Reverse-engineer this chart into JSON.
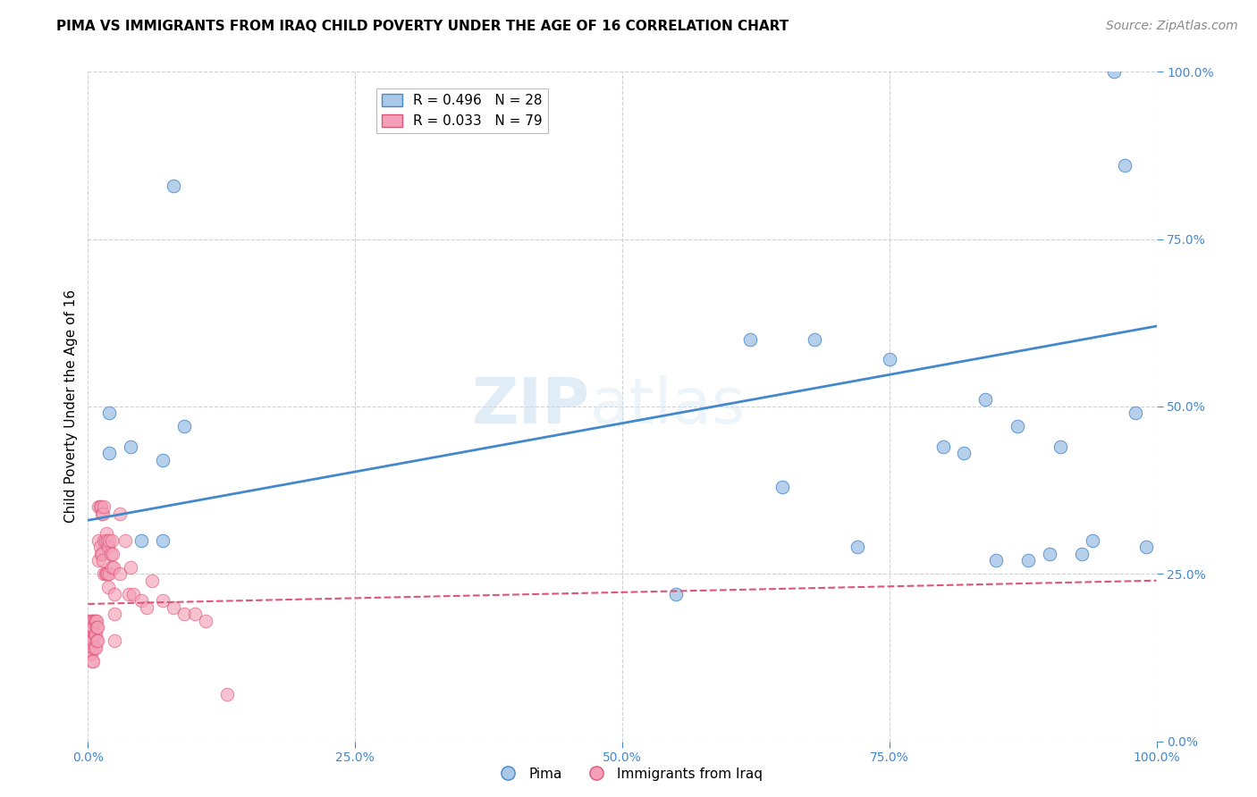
{
  "title": "PIMA VS IMMIGRANTS FROM IRAQ CHILD POVERTY UNDER THE AGE OF 16 CORRELATION CHART",
  "source": "Source: ZipAtlas.com",
  "ylabel": "Child Poverty Under the Age of 16",
  "blue_label": "Pima",
  "pink_label": "Immigrants from Iraq",
  "blue_R": "R = 0.496",
  "blue_N": "N = 28",
  "pink_R": "R = 0.033",
  "pink_N": "N = 79",
  "blue_color": "#aac8e8",
  "pink_color": "#f4a0b8",
  "blue_line_color": "#4488cc",
  "pink_line_color": "#dd5577",
  "watermark_top": "ZIP",
  "watermark_bot": "atlas",
  "xlim": [
    0,
    1
  ],
  "ylim": [
    0,
    1
  ],
  "xticks": [
    0.0,
    0.25,
    0.5,
    0.75,
    1.0
  ],
  "yticks": [
    0.0,
    0.25,
    0.5,
    0.75,
    1.0
  ],
  "blue_points_x": [
    0.02,
    0.02,
    0.04,
    0.05,
    0.07,
    0.07,
    0.08,
    0.09,
    0.55,
    0.65,
    0.68,
    0.72,
    0.75,
    0.8,
    0.82,
    0.84,
    0.85,
    0.87,
    0.88,
    0.9,
    0.91,
    0.93,
    0.94,
    0.96,
    0.97,
    0.98,
    0.99,
    0.62
  ],
  "blue_points_y": [
    0.49,
    0.43,
    0.44,
    0.3,
    0.3,
    0.42,
    0.83,
    0.47,
    0.22,
    0.38,
    0.6,
    0.29,
    0.57,
    0.44,
    0.43,
    0.51,
    0.27,
    0.47,
    0.27,
    0.28,
    0.44,
    0.28,
    0.3,
    1.0,
    0.86,
    0.49,
    0.29,
    0.6
  ],
  "pink_points_x": [
    0.0,
    0.0,
    0.001,
    0.001,
    0.001,
    0.002,
    0.002,
    0.002,
    0.003,
    0.003,
    0.003,
    0.003,
    0.004,
    0.004,
    0.004,
    0.004,
    0.005,
    0.005,
    0.005,
    0.005,
    0.005,
    0.006,
    0.006,
    0.006,
    0.007,
    0.007,
    0.007,
    0.008,
    0.008,
    0.008,
    0.009,
    0.009,
    0.01,
    0.01,
    0.01,
    0.011,
    0.011,
    0.012,
    0.012,
    0.013,
    0.013,
    0.014,
    0.014,
    0.015,
    0.015,
    0.015,
    0.016,
    0.016,
    0.017,
    0.017,
    0.018,
    0.018,
    0.019,
    0.019,
    0.02,
    0.02,
    0.021,
    0.022,
    0.022,
    0.023,
    0.024,
    0.025,
    0.025,
    0.025,
    0.03,
    0.03,
    0.035,
    0.038,
    0.04,
    0.042,
    0.05,
    0.055,
    0.06,
    0.07,
    0.08,
    0.09,
    0.1,
    0.11,
    0.13
  ],
  "pink_points_y": [
    0.17,
    0.16,
    0.18,
    0.16,
    0.14,
    0.15,
    0.14,
    0.13,
    0.18,
    0.17,
    0.15,
    0.13,
    0.18,
    0.17,
    0.15,
    0.12,
    0.18,
    0.17,
    0.15,
    0.14,
    0.12,
    0.18,
    0.16,
    0.14,
    0.18,
    0.16,
    0.14,
    0.18,
    0.17,
    0.15,
    0.17,
    0.15,
    0.35,
    0.3,
    0.27,
    0.35,
    0.29,
    0.35,
    0.28,
    0.34,
    0.28,
    0.34,
    0.27,
    0.35,
    0.3,
    0.25,
    0.3,
    0.25,
    0.31,
    0.25,
    0.3,
    0.25,
    0.29,
    0.23,
    0.3,
    0.25,
    0.28,
    0.3,
    0.26,
    0.28,
    0.26,
    0.22,
    0.19,
    0.15,
    0.34,
    0.25,
    0.3,
    0.22,
    0.26,
    0.22,
    0.21,
    0.2,
    0.24,
    0.21,
    0.2,
    0.19,
    0.19,
    0.18,
    0.07
  ],
  "blue_line_x": [
    0.0,
    1.0
  ],
  "blue_line_y": [
    0.33,
    0.62
  ],
  "pink_line_x": [
    0.0,
    1.0
  ],
  "pink_line_y": [
    0.205,
    0.24
  ],
  "background_color": "#ffffff",
  "grid_color": "#cccccc",
  "title_fontsize": 11,
  "axis_label_fontsize": 11,
  "tick_fontsize": 10,
  "legend_fontsize": 11,
  "source_fontsize": 10
}
